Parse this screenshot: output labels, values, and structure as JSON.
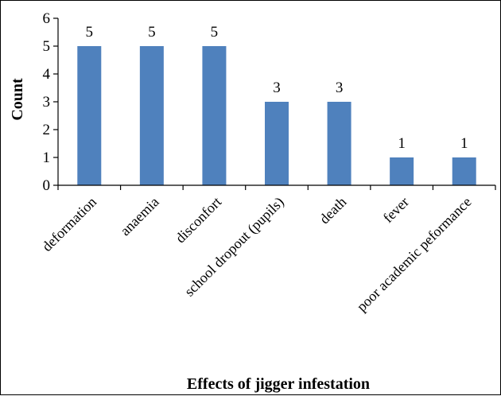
{
  "chart_data": {
    "type": "bar",
    "categories": [
      "deformation",
      "anaemia",
      "disconfort",
      "school dropout (pupils)",
      "death",
      "fever",
      "poor academic peformance"
    ],
    "values": [
      5,
      5,
      5,
      3,
      3,
      1,
      1
    ],
    "data_labels": [
      "5",
      "5",
      "5",
      "3",
      "3",
      "1",
      "1"
    ],
    "title": "",
    "xlabel": "Effects of jigger infestation",
    "ylabel": "Count",
    "ylim": [
      0,
      6
    ],
    "yticks": [
      "0",
      "1",
      "2",
      "3",
      "4",
      "5",
      "6"
    ],
    "grid": false,
    "legend": "none",
    "bar_color": "#4f81bd"
  }
}
